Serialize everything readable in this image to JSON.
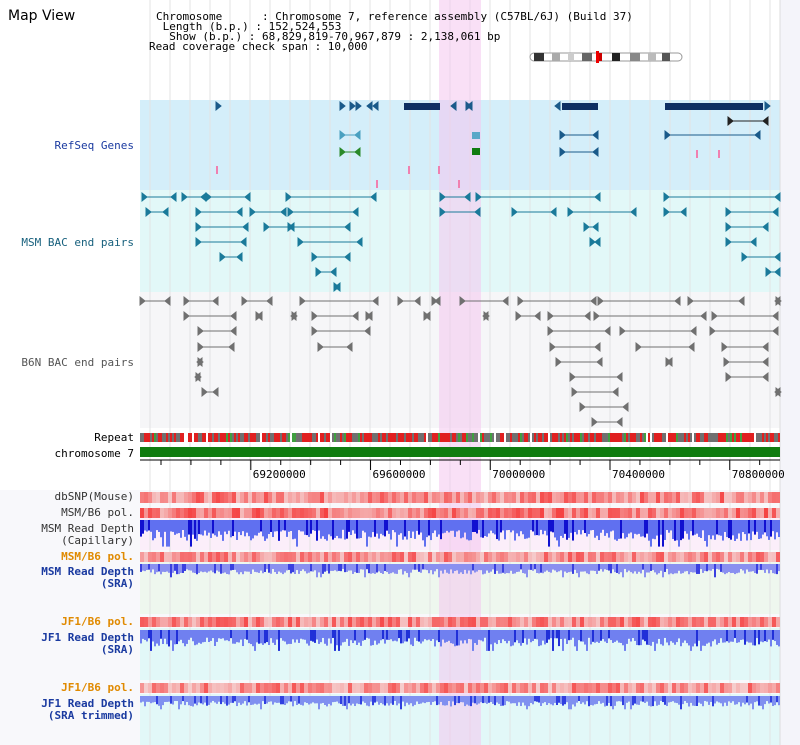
{
  "title": "Map View",
  "info": {
    "chromosome": "Chromosome      : Chromosome 7, reference assembly (C57BL/6J) (Build 37)",
    "length": " Length (b.p.) : 152,524,553",
    "show": "  Show (b.p.) : 68,829,819-70,967,879 : 2,138,061 bp",
    "coverage": "Read coverage check span : 10,000"
  },
  "tracks": {
    "refseq": "RefSeq Genes",
    "msm_bac": "MSM BAC end pairs",
    "b6n_bac": "B6N BAC end pairs",
    "repeat": "Repeat",
    "chromosome": "chromosome 7",
    "dbsnp": "dbSNP(Mouse)",
    "msm_pol1": "MSM/B6 pol.",
    "msm_depth_cap_1": "MSM Read Depth",
    "msm_depth_cap_2": "(Capillary)",
    "msm_pol2": "MSM/B6 pol.",
    "msm_depth_sra_1": "MSM Read Depth",
    "msm_depth_sra_2": "(SRA)",
    "jf1_pol1": "JF1/B6 pol.",
    "jf1_depth_sra_1": "JF1 Read Depth",
    "jf1_depth_sra_2": "(SRA)",
    "jf1_pol2": "JF1/B6 pol.",
    "jf1_depth_trim_1": "JF1 Read Depth",
    "jf1_depth_trim_2": "(SRA trimmed)"
  },
  "axis": {
    "ticks": [
      "69200000",
      "69600000",
      "70000000",
      "70400000",
      "70800000"
    ],
    "tick_values": [
      69200000,
      69600000,
      70000000,
      70400000,
      70800000
    ],
    "range": [
      68829819,
      70967879
    ]
  },
  "colors": {
    "refseq_bg": "#d4eefa",
    "bac_bg": "#e2f8f8",
    "highlight": "#f4d6f2",
    "gene": "#0e2f63",
    "chrom_bar": "#107c10"
  }
}
